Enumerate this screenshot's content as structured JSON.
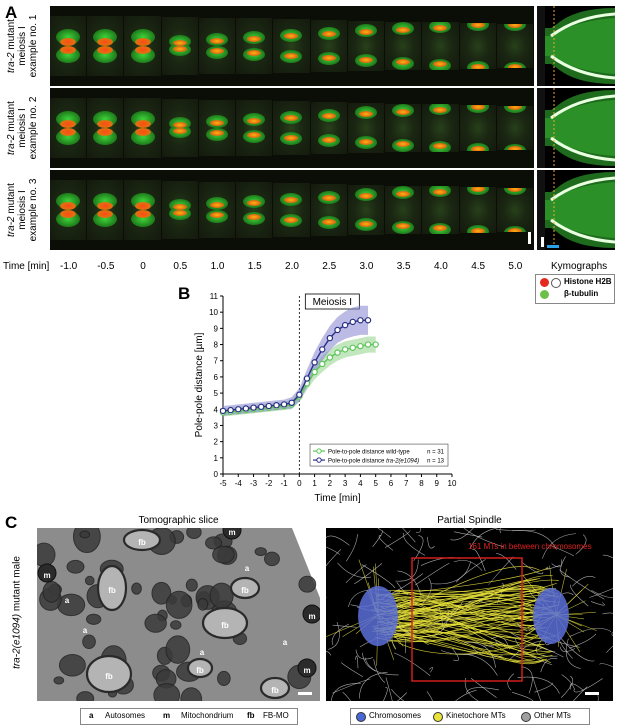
{
  "panel_a": {
    "letter": "A",
    "rows": [
      {
        "line1": "tra-2",
        "line1_rest": " mutant",
        "line2": "meiosis I",
        "line3": "example no. 1"
      },
      {
        "line1": "tra-2",
        "line1_rest": " mutant",
        "line2": "meiosis I",
        "line3": "example no. 2"
      },
      {
        "line1": "tra-2",
        "line1_rest": " mutant",
        "line2": "meiosis I",
        "line3": "example no. 3"
      }
    ],
    "time_prefix": "Time [min]",
    "time_points": [
      "-1.0",
      "-0.5",
      "0",
      "0.5",
      "1.0",
      "1.5",
      "2.0",
      "2.5",
      "3.0",
      "3.5",
      "4.0",
      "4.5",
      "5.0"
    ],
    "kymographs_label": "Kymographs",
    "legend": [
      {
        "label": "Histone H2B",
        "color": "#e4291f"
      },
      {
        "label": "β-tubulin",
        "color": "#6cc04a"
      }
    ]
  },
  "panel_b": {
    "letter": "B",
    "annotation": "Meiosis I",
    "legend_items": [
      {
        "label": "Pole-to-pole distance wild-type",
        "n": "n = 31"
      },
      {
        "label_prefix": "Pole-to-pole distance ",
        "label_italic": "tra-2(e1094)",
        "n": "n = 13"
      }
    ]
  },
  "chart_data": {
    "type": "line",
    "xlabel": "Time [min]",
    "ylabel": "Pole-pole distance [µm]",
    "xlim": [
      -5,
      10
    ],
    "ylim": [
      0,
      11
    ],
    "xticks": [
      -5,
      -4,
      -3,
      -2,
      -1,
      0,
      1,
      2,
      3,
      4,
      5,
      6,
      7,
      8,
      9,
      10
    ],
    "yticks": [
      0,
      1,
      2,
      3,
      4,
      5,
      6,
      7,
      8,
      9,
      10,
      11
    ],
    "legend_position": "bottom-right",
    "grid": false,
    "series": [
      {
        "name": "Pole-to-pole distance wild-type",
        "color": "#5fc45a",
        "band_color": "#8fd488",
        "x": [
          -5,
          -4.5,
          -4,
          -3.5,
          -3,
          -2.5,
          -2,
          -1.5,
          -1,
          -0.5,
          0,
          0.5,
          1,
          1.5,
          2,
          2.5,
          3,
          3.5,
          4,
          4.5,
          5
        ],
        "y": [
          3.8,
          3.85,
          3.9,
          3.95,
          4.0,
          4.05,
          4.1,
          4.15,
          4.2,
          4.3,
          4.8,
          5.6,
          6.3,
          6.8,
          7.2,
          7.5,
          7.7,
          7.8,
          7.9,
          8.0,
          8.0
        ],
        "err": [
          0.25,
          0.25,
          0.25,
          0.25,
          0.25,
          0.25,
          0.25,
          0.25,
          0.25,
          0.3,
          0.35,
          0.4,
          0.45,
          0.5,
          0.5,
          0.5,
          0.5,
          0.5,
          0.5,
          0.5,
          0.5
        ]
      },
      {
        "name": "Pole-to-pole distance tra-2(e1094)",
        "color": "#2b2f84",
        "band_color": "#8383cf",
        "x": [
          -5,
          -4.5,
          -4,
          -3.5,
          -3,
          -2.5,
          -2,
          -1.5,
          -1,
          -0.5,
          0,
          0.5,
          1,
          1.5,
          2,
          2.5,
          3,
          3.5,
          4,
          4.5
        ],
        "y": [
          3.9,
          3.95,
          4.0,
          4.05,
          4.1,
          4.15,
          4.2,
          4.25,
          4.3,
          4.4,
          4.9,
          5.9,
          6.9,
          7.7,
          8.4,
          8.9,
          9.2,
          9.4,
          9.5,
          9.5
        ],
        "err": [
          0.3,
          0.3,
          0.3,
          0.3,
          0.3,
          0.3,
          0.3,
          0.3,
          0.3,
          0.35,
          0.4,
          0.55,
          0.65,
          0.7,
          0.75,
          0.8,
          0.85,
          0.9,
          0.9,
          0.9
        ]
      }
    ]
  },
  "panel_c": {
    "letter": "C",
    "side_label_italic": "tra-2(e1094)",
    "side_label_rest": " mutant male",
    "left_title": "Tomographic slice",
    "right_title": "Partial Spindle",
    "spindle_annotation": "161 MTs in between chromosomes",
    "em_labels": [
      "fb",
      "fb",
      "fb",
      "fb",
      "fb",
      "fb",
      "fb",
      "m",
      "m",
      "m",
      "m",
      "a",
      "a",
      "a",
      "a",
      "a"
    ],
    "left_legend": [
      {
        "key": "a",
        "label": "Autosomes"
      },
      {
        "key": "m",
        "label": "Mitochondrium"
      },
      {
        "key": "fb",
        "label": "FB-MO"
      }
    ],
    "right_legend": [
      {
        "label": "Chromosomes",
        "color": "#4a67d6"
      },
      {
        "label": "Kinetochore MTs",
        "color": "#e8e23a"
      },
      {
        "label": "Other MTs",
        "color": "#a0a0a0"
      }
    ]
  }
}
